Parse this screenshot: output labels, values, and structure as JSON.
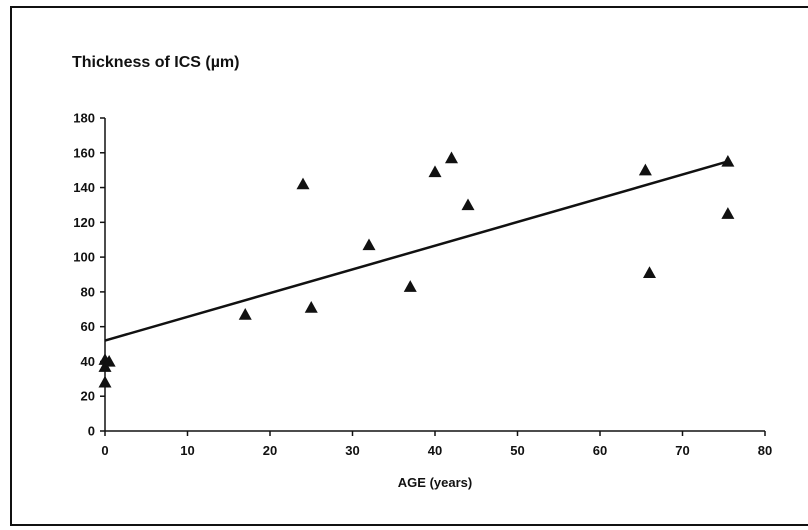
{
  "chart_data": {
    "type": "scatter",
    "title": "Thickness of ICS (µm)",
    "xlabel": "AGE (years)",
    "ylabel": "",
    "xlim": [
      0,
      80
    ],
    "ylim": [
      0,
      180
    ],
    "xticks": [
      0,
      10,
      20,
      30,
      40,
      50,
      60,
      70,
      80
    ],
    "yticks": [
      0,
      20,
      40,
      60,
      80,
      100,
      120,
      140,
      160,
      180
    ],
    "grid": false,
    "legend": "none",
    "marker": "triangle",
    "marker_color": "#111111",
    "points": [
      {
        "x": 0,
        "y": 28
      },
      {
        "x": 0,
        "y": 37
      },
      {
        "x": 0,
        "y": 41
      },
      {
        "x": 0.5,
        "y": 40
      },
      {
        "x": 17,
        "y": 67
      },
      {
        "x": 24,
        "y": 142
      },
      {
        "x": 25,
        "y": 71
      },
      {
        "x": 32,
        "y": 107
      },
      {
        "x": 37,
        "y": 83
      },
      {
        "x": 40,
        "y": 149
      },
      {
        "x": 42,
        "y": 157
      },
      {
        "x": 44,
        "y": 130
      },
      {
        "x": 65.5,
        "y": 150
      },
      {
        "x": 66,
        "y": 91
      },
      {
        "x": 75.5,
        "y": 155
      },
      {
        "x": 75.5,
        "y": 125
      }
    ],
    "trendline": {
      "type": "linear",
      "x": [
        0,
        75.5
      ],
      "y": [
        52,
        155
      ],
      "color": "#111111"
    }
  }
}
